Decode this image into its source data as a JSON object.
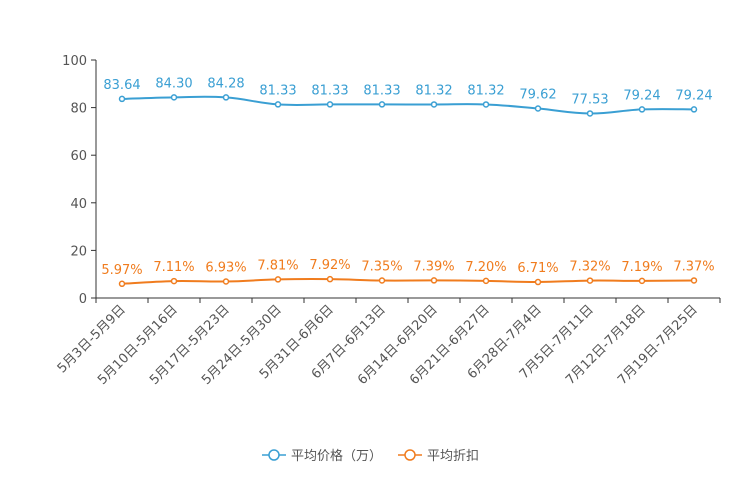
{
  "chart_data": {
    "type": "line",
    "title": "",
    "xlabel": "",
    "ylabel": "",
    "ylim": [
      0,
      100
    ],
    "yticks": [
      "0",
      "20",
      "40",
      "60",
      "80",
      "100"
    ],
    "categories": [
      "5月3日-5月9日",
      "5月10日-5月16日",
      "5月17日-5月23日",
      "5月24日-5月30日",
      "5月31日-6月6日",
      "6月7日-6月13日",
      "6月14日-6月20日",
      "6月21日-6月27日",
      "6月28日-7月4日",
      "7月5日-7月11日",
      "7月12日-7月18日",
      "7月19日-7月25日"
    ],
    "series": [
      {
        "name": "平均价格（万）",
        "color": "#3a9fd3",
        "values": [
          83.64,
          84.3,
          84.28,
          81.33,
          81.33,
          81.33,
          81.32,
          81.32,
          79.62,
          77.53,
          79.24,
          79.24
        ],
        "labels": [
          "83.64",
          "84.30",
          "84.28",
          "81.33",
          "81.33",
          "81.33",
          "81.32",
          "81.32",
          "79.62",
          "77.53",
          "79.24",
          "79.24"
        ]
      },
      {
        "name": "平均折扣",
        "color": "#f07c1e",
        "values": [
          5.97,
          7.11,
          6.93,
          7.81,
          7.92,
          7.35,
          7.39,
          7.2,
          6.71,
          7.32,
          7.19,
          7.37
        ],
        "labels": [
          "5.97%",
          "7.11%",
          "6.93%",
          "7.81%",
          "7.92%",
          "7.35%",
          "7.39%",
          "7.20%",
          "6.71%",
          "7.32%",
          "7.19%",
          "7.37%"
        ]
      }
    ],
    "legend": "bottom-center"
  }
}
